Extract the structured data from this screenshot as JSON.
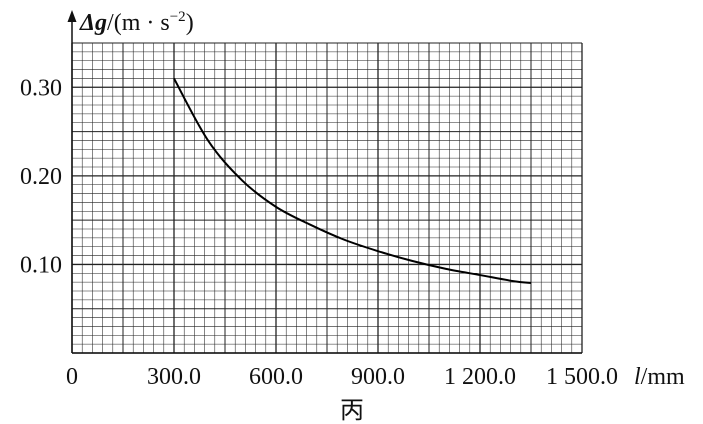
{
  "chart_data": {
    "type": "line",
    "xlabel_var": "l",
    "xlabel_unit": "/mm",
    "ylabel_var": "Δg",
    "ylabel_unit": "/(m · s",
    "ylabel_exp": "−2",
    "ylabel_close": ")",
    "x_ticks": [
      {
        "value": 0,
        "label": "0"
      },
      {
        "value": 300,
        "label": "300.0"
      },
      {
        "value": 600,
        "label": "600.0"
      },
      {
        "value": 900,
        "label": "900.0"
      },
      {
        "value": 1200,
        "label": "1 200.0"
      },
      {
        "value": 1500,
        "label": "1 500.0"
      }
    ],
    "y_ticks": [
      {
        "value": 0.1,
        "label": "0.10"
      },
      {
        "value": 0.2,
        "label": "0.20"
      },
      {
        "value": 0.3,
        "label": "0.30"
      }
    ],
    "xlim": [
      0,
      1500
    ],
    "ylim": [
      0,
      0.35
    ],
    "grid": true,
    "series": [
      {
        "x": [
          300,
          400,
          500,
          600,
          700,
          800,
          900,
          1000,
          1100,
          1200,
          1300,
          1350
        ],
        "y": [
          0.31,
          0.24,
          0.195,
          0.165,
          0.145,
          0.128,
          0.115,
          0.104,
          0.095,
          0.088,
          0.081,
          0.079
        ]
      }
    ],
    "caption": "丙"
  }
}
